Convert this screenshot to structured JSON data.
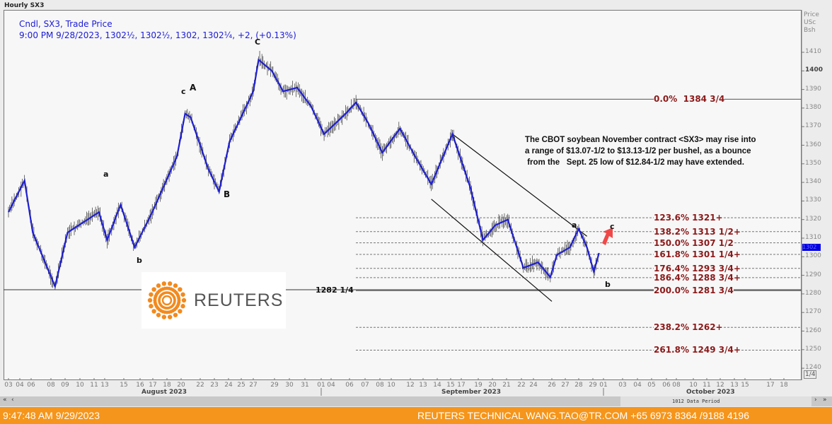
{
  "window": {
    "title": "Hourly SX3"
  },
  "legend": {
    "line1": "Cndl, SX3, Trade Price",
    "line2": "9:00 PM 9/28/2023, 1302½, 1302½, 1302, 1302¼, +2, (+0.13%)"
  },
  "chart_data": {
    "type": "candlestick",
    "title": "Hourly SX3",
    "ylabel": "Price USc Bsh",
    "ylim": [
      1235,
      1418
    ],
    "yticks": [
      1410,
      1400,
      1390,
      1380,
      1370,
      1360,
      1350,
      1340,
      1330,
      1320,
      1310,
      1300,
      1290,
      1280,
      1270,
      1260,
      1250,
      1240
    ],
    "xticks": [
      [
        "08-03",
        "03"
      ],
      [
        "08-04",
        "04"
      ],
      [
        "08-06",
        "06"
      ],
      [
        "08-08",
        "08"
      ],
      [
        "08-09",
        "09"
      ],
      [
        "08-10",
        "10"
      ],
      [
        "08-11",
        "11"
      ],
      [
        "08-13",
        "13"
      ],
      [
        "08-15",
        "15"
      ],
      [
        "08-16",
        "16"
      ],
      [
        "08-17",
        "17"
      ],
      [
        "08-18",
        "18"
      ],
      [
        "08-20",
        "20"
      ],
      [
        "08-22",
        "22"
      ],
      [
        "08-23",
        "23"
      ],
      [
        "08-24",
        "24"
      ],
      [
        "08-25",
        "25"
      ],
      [
        "08-27",
        "27"
      ],
      [
        "08-29",
        "29"
      ],
      [
        "08-30",
        "30"
      ],
      [
        "08-31",
        "31"
      ],
      [
        "09-01",
        "01"
      ],
      [
        "09-04",
        "04"
      ],
      [
        "09-06",
        "06"
      ],
      [
        "09-07",
        "07"
      ],
      [
        "09-08",
        "08"
      ],
      [
        "09-10",
        "10"
      ],
      [
        "09-12",
        "12"
      ],
      [
        "09-13",
        "13"
      ],
      [
        "09-14",
        "14"
      ],
      [
        "09-15",
        "15"
      ],
      [
        "09-17",
        "17"
      ],
      [
        "09-19",
        "19"
      ],
      [
        "09-20",
        "20"
      ],
      [
        "09-21",
        "21"
      ],
      [
        "09-22",
        "22"
      ],
      [
        "09-24",
        "24"
      ],
      [
        "09-26",
        "26"
      ],
      [
        "09-27",
        "27"
      ],
      [
        "09-28",
        "28"
      ],
      [
        "09-29",
        "29"
      ],
      [
        "10-01",
        "01"
      ],
      [
        "10-03",
        "03"
      ],
      [
        "10-04",
        "04"
      ],
      [
        "10-05",
        "05"
      ],
      [
        "10-06",
        "06"
      ],
      [
        "10-08",
        "08"
      ],
      [
        "10-10",
        "10"
      ],
      [
        "10-11",
        "11"
      ],
      [
        "10-12",
        "12"
      ],
      [
        "10-13",
        "13"
      ],
      [
        "10-15",
        "15"
      ],
      [
        "10-17",
        "17"
      ],
      [
        "10-18",
        "18"
      ]
    ],
    "months": [
      "August 2023",
      "September 2023",
      "October 2023"
    ],
    "price_path": [
      [
        "08-03 00",
        1324
      ],
      [
        "08-04 10",
        1341
      ],
      [
        "08-06 02",
        1313
      ],
      [
        "08-08 07",
        1284
      ],
      [
        "08-09 04",
        1313
      ],
      [
        "08-11 11",
        1324
      ],
      [
        "08-13 03",
        1309
      ],
      [
        "08-13 20",
        1328
      ],
      [
        "08-15 16",
        1305
      ],
      [
        "08-16 23",
        1324
      ],
      [
        "08-18 17",
        1354
      ],
      [
        "08-20 05",
        1377
      ],
      [
        "08-20 12",
        1375
      ],
      [
        "08-22 14",
        1347
      ],
      [
        "08-23 08",
        1335
      ],
      [
        "08-24 02",
        1362
      ],
      [
        "08-27 00",
        1389
      ],
      [
        "08-27 06",
        1406
      ],
      [
        "08-27 21",
        1400
      ],
      [
        "08-29 14",
        1389
      ],
      [
        "08-30 12",
        1391
      ],
      [
        "08-31 09",
        1381
      ],
      [
        "09-01 07",
        1366
      ],
      [
        "09-04 19",
        1377
      ],
      [
        "09-06 10",
        1383
      ],
      [
        "09-07 05",
        1372
      ],
      [
        "09-08 05",
        1356
      ],
      [
        "09-10 11",
        1369
      ],
      [
        "09-12 07",
        1355
      ],
      [
        "09-13 14",
        1339
      ],
      [
        "09-15 04",
        1366
      ],
      [
        "09-17 13",
        1337
      ],
      [
        "09-19 08",
        1309
      ],
      [
        "09-20 05",
        1317
      ],
      [
        "09-21 02",
        1320
      ],
      [
        "09-22 04",
        1294
      ],
      [
        "09-24 06",
        1297
      ],
      [
        "09-24 22",
        1289
      ],
      [
        "09-26 09",
        1301
      ],
      [
        "09-27 08",
        1305
      ],
      [
        "09-28 00",
        1315
      ],
      [
        "09-28 14",
        1305
      ],
      [
        "09-29 02",
        1292
      ],
      [
        "09-29 14",
        1302
      ]
    ],
    "last_price": "1302",
    "series_color": "#1f1fd0",
    "support_line": {
      "value": 1282.25,
      "label": "1282 1/4"
    },
    "fib_levels": [
      {
        "value": 1384.75,
        "label": "0.0%  1384 3/4",
        "style": "solid"
      },
      {
        "value": 1321,
        "label": "123.6% 1321+",
        "style": "dashed"
      },
      {
        "value": 1313.5,
        "label": "138.2% 1313 1/2+",
        "style": "dashed"
      },
      {
        "value": 1307.5,
        "label": "150.0% 1307 1/2",
        "style": "dashed"
      },
      {
        "value": 1301.25,
        "label": "161.8% 1301 1/4+",
        "style": "dashed"
      },
      {
        "value": 1293.75,
        "label": "176.4% 1293 3/4+",
        "style": "dashed"
      },
      {
        "value": 1288.75,
        "label": "186.4% 1288 3/4+",
        "style": "dashed"
      },
      {
        "value": 1281.75,
        "label": "200.0% 1281 3/4",
        "style": "solid"
      },
      {
        "value": 1262,
        "label": "238.2% 1262+",
        "style": "dashed"
      },
      {
        "value": 1249.75,
        "label": "261.8% 1249 3/4+",
        "style": "dashed"
      }
    ],
    "fib_color": "#8b1a1a",
    "channel": [
      [
        [
          "09-15 04",
          1366
        ],
        [
          "09-28 14",
          1311
        ]
      ],
      [
        [
          "09-13 14",
          1331
        ],
        [
          "09-26 00",
          1276
        ]
      ]
    ],
    "wave_labels": [
      "C",
      "c",
      "A",
      "a",
      "B",
      "b",
      "a",
      "c",
      "b"
    ],
    "annotation": "The CBOT soybean November contract <SX3> may rise into\na range of $13.07-1/2 to $13.13-1/2 per bushel, as a bounce\n from the   Sept. 25 low of $12.84-1/2 may have extended.",
    "arrow_color": "#f04848"
  },
  "axis": {
    "unit_line1": "Price",
    "unit_line2": "USc",
    "unit_line3": "Bsh",
    "fraction": "1/4"
  },
  "logo": {
    "text": "REUTERS"
  },
  "scrollbar": {
    "first": "«",
    "prev": "‹",
    "next": "›",
    "last": "»",
    "period": "1012 Data Period"
  },
  "footer": {
    "time": "9:47:48 AM 9/29/2023",
    "contact": "REUTERS TECHNICAL  WANG.TAO@TR.COM  +65 6973 8364 /9188 4196"
  }
}
